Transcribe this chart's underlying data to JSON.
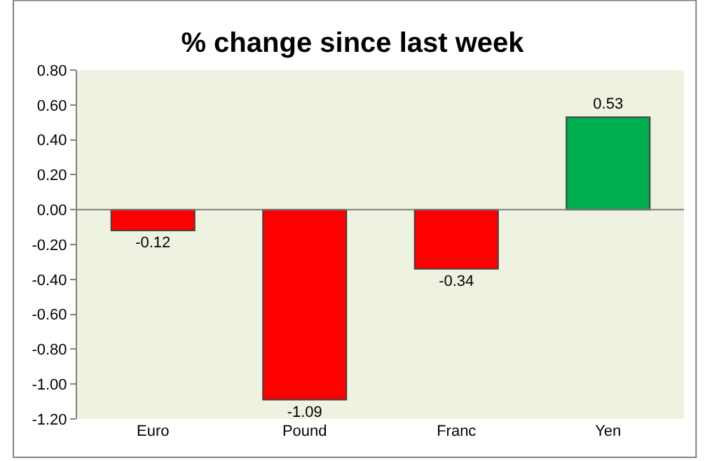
{
  "chart_data": {
    "type": "bar",
    "title": "% change since last week",
    "categories": [
      "Euro",
      "Pound",
      "Franc",
      "Yen"
    ],
    "values": [
      -0.12,
      -1.09,
      -0.34,
      0.53
    ],
    "colors": [
      "#ff0000",
      "#ff0000",
      "#ff0000",
      "#00b050"
    ],
    "ylim": [
      -1.2,
      0.8
    ],
    "yticks": [
      {
        "value": -1.2,
        "label": "-1.20"
      },
      {
        "value": -1.0,
        "label": "-1.00"
      },
      {
        "value": -0.8,
        "label": "-0.80"
      },
      {
        "value": -0.6,
        "label": "-0.60"
      },
      {
        "value": -0.4,
        "label": "-0.40"
      },
      {
        "value": -0.2,
        "label": "-0.20"
      },
      {
        "value": 0,
        "label": "0.00"
      },
      {
        "value": 0.2,
        "label": "0.20"
      },
      {
        "value": 0.4,
        "label": "0.40"
      },
      {
        "value": 0.6,
        "label": "0.60"
      },
      {
        "value": 0.8,
        "label": "0.80"
      }
    ],
    "data_labels": true,
    "legend": false
  }
}
